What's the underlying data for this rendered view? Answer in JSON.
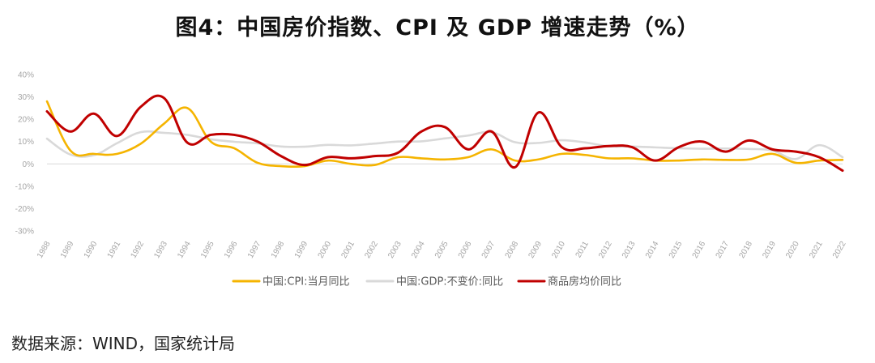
{
  "title": "图4：中国房价指数、CPI 及 GDP 增速走势（%）",
  "source": "数据来源：WIND，国家统计局",
  "chart_data": {
    "type": "line",
    "ylim": [
      -30,
      40
    ],
    "yticks": [
      -30,
      -20,
      -10,
      0,
      10,
      20,
      30,
      40
    ],
    "ytick_labels": [
      "-30%",
      "-20%",
      "-10%",
      "0%",
      "10%",
      "20%",
      "30%",
      "40%"
    ],
    "x": [
      "1988",
      "1989",
      "1990",
      "1991",
      "1992",
      "1993",
      "1994",
      "1995",
      "1996",
      "1997",
      "1998",
      "1999",
      "2000",
      "2001",
      "2002",
      "2003",
      "2004",
      "2005",
      "2006",
      "2007",
      "2008",
      "2009",
      "2010",
      "2011",
      "2012",
      "2013",
      "2014",
      "2015",
      "2016",
      "2017",
      "2018",
      "2019",
      "2020",
      "2021",
      "2022"
    ],
    "legend_position": "bottom-center",
    "series": [
      {
        "name": "中国:CPI:当月同比",
        "color": "#F5B400",
        "values": [
          28,
          6,
          4.5,
          4.5,
          9,
          18,
          25,
          10,
          7,
          0.5,
          -1,
          -1,
          1.5,
          0,
          -0.5,
          3,
          2.5,
          2,
          3,
          6.5,
          1.5,
          2,
          4.5,
          4,
          2.5,
          2.5,
          1.5,
          1.5,
          2,
          1.8,
          2,
          4.5,
          0.5,
          1.5,
          1.8
        ]
      },
      {
        "name": "中国:GDP:不变价:同比",
        "color": "#D9D9D9",
        "values": [
          11.3,
          4.2,
          3.9,
          9.3,
          14.2,
          13.9,
          13,
          11,
          9.9,
          9.2,
          7.8,
          7.7,
          8.5,
          8.3,
          9.1,
          10,
          10.1,
          11.4,
          12.7,
          14.2,
          9.7,
          9.4,
          10.6,
          9.6,
          7.9,
          7.8,
          7.4,
          7,
          6.8,
          6.9,
          6.7,
          6,
          2.2,
          8.4,
          3
        ]
      },
      {
        "name": "商品房均价同比",
        "color": "#C00000",
        "values": [
          23.5,
          14.5,
          22.5,
          12.5,
          25.5,
          29.5,
          9.5,
          13,
          13,
          10,
          3.5,
          -0.5,
          3,
          2.5,
          3.5,
          5,
          14.5,
          16.5,
          6.5,
          14.5,
          -1.5,
          23,
          7.5,
          7,
          8,
          7.5,
          1.5,
          7.5,
          10,
          5.5,
          10.5,
          6.5,
          5.5,
          3,
          -3
        ]
      }
    ]
  }
}
